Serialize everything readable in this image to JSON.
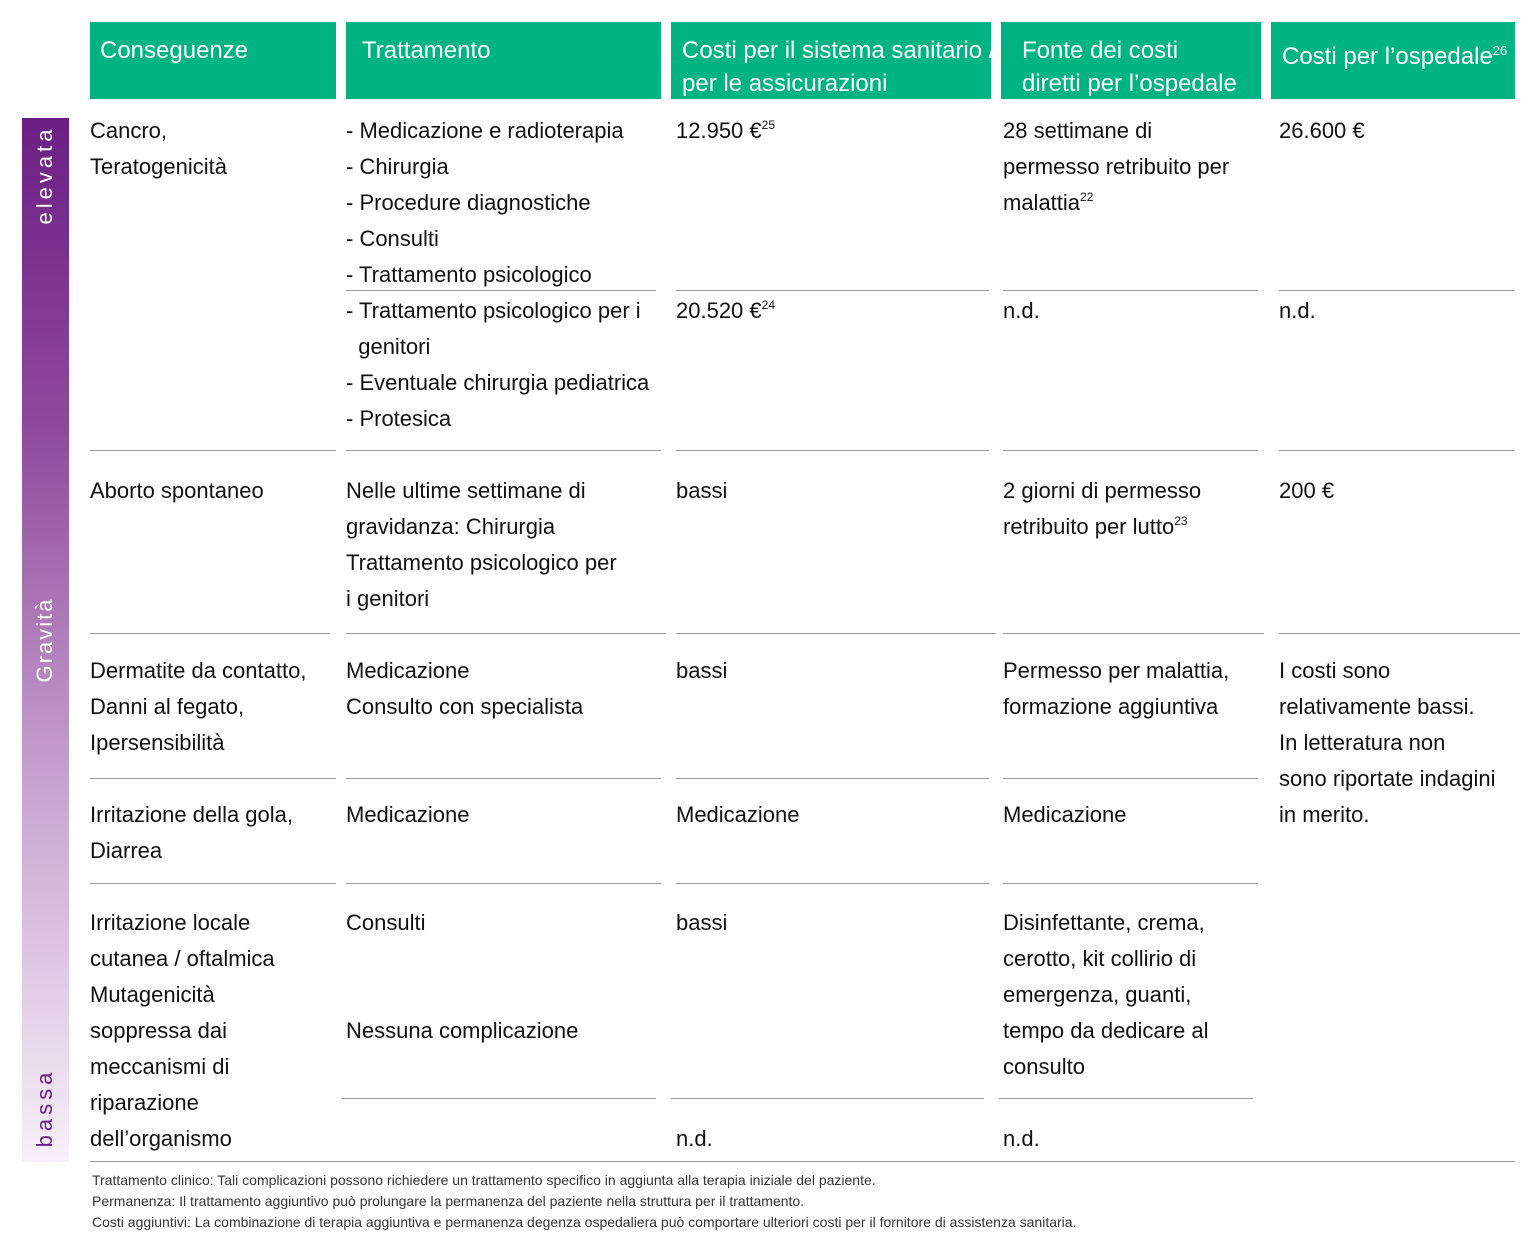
{
  "headers": [
    {
      "lines": [
        "Conseguenze"
      ]
    },
    {
      "lines": [
        "Trattamento"
      ]
    },
    {
      "lines": [
        "Costi per il sistema sanitario /",
        "per le assicurazioni"
      ]
    },
    {
      "lines": [
        "Fonte dei costi",
        "diretti per l’ospedale"
      ]
    },
    {
      "lines": [
        "Costi per l’ospedale"
      ],
      "sup": "26"
    }
  ],
  "severity": {
    "high": "elevata",
    "label": "Gravità",
    "low": "bassa",
    "color_high": "#6b1f84",
    "color_low": "#f7f0f8"
  },
  "cells": [
    {
      "id": "cancro-conseguenze",
      "lines": [
        "Cancro,",
        "Teratogenicità"
      ]
    },
    {
      "id": "cancro-trattamento",
      "lines": [
        "- Medicazione e radioterapia",
        "- Chirurgia",
        "- Procedure diagnostiche",
        "- Consulti",
        "- Trattamento psicologico"
      ]
    },
    {
      "id": "cancro-costi-sistema",
      "lines": [
        {
          "t": "12.950 €",
          "sup": "25"
        }
      ]
    },
    {
      "id": "cancro-fonte",
      "lines": [
        "28 settimane di",
        "permesso retribuito per",
        {
          "t": "malattia",
          "sup": "22"
        }
      ]
    },
    {
      "id": "cancro-costi-ospedale",
      "lines": [
        "26.600 €"
      ]
    },
    {
      "id": "terato-trattamento",
      "lines": [
        "- Trattamento psicologico per i",
        "  genitori",
        "- Eventuale chirurgia pediatrica",
        "- Protesica"
      ]
    },
    {
      "id": "terato-costi-sistema",
      "lines": [
        {
          "t": "20.520 €",
          "sup": "24"
        }
      ]
    },
    {
      "id": "terato-fonte",
      "lines": [
        "n.d."
      ]
    },
    {
      "id": "terato-costi-ospedale",
      "lines": [
        "n.d."
      ]
    },
    {
      "id": "aborto-conseguenze",
      "lines": [
        "Aborto spontaneo"
      ]
    },
    {
      "id": "aborto-trattamento",
      "lines": [
        "Nelle ultime settimane di",
        "gravidanza: Chirurgia",
        "Trattamento psicologico per",
        "i genitori"
      ]
    },
    {
      "id": "aborto-costi-sistema",
      "lines": [
        "bassi"
      ]
    },
    {
      "id": "aborto-fonte",
      "lines": [
        "2 giorni di permesso",
        {
          "t": "retribuito per lutto",
          "sup": "23"
        }
      ]
    },
    {
      "id": "aborto-costi-ospedale",
      "lines": [
        "200 €"
      ]
    },
    {
      "id": "dermatite-conseguenze",
      "lines": [
        "Dermatite da contatto,",
        "Danni al fegato,",
        "Ipersensibilità"
      ]
    },
    {
      "id": "dermatite-trattamento",
      "lines": [
        "Medicazione",
        "Consulto con specialista"
      ]
    },
    {
      "id": "dermatite-costi-sistema",
      "lines": [
        "bassi"
      ]
    },
    {
      "id": "dermatite-fonte",
      "lines": [
        "Permesso per malattia,",
        "formazione aggiuntiva"
      ]
    },
    {
      "id": "bassi-costi-ospedale",
      "lines": [
        "I costi sono",
        "relativamente bassi.",
        "In letteratura non",
        "sono riportate indagini",
        "in merito."
      ]
    },
    {
      "id": "gola-conseguenze",
      "lines": [
        "Irritazione della gola,",
        "Diarrea"
      ]
    },
    {
      "id": "gola-trattamento",
      "lines": [
        "Medicazione"
      ]
    },
    {
      "id": "gola-costi-sistema",
      "lines": [
        "Medicazione"
      ]
    },
    {
      "id": "gola-fonte",
      "lines": [
        "Medicazione"
      ]
    },
    {
      "id": "irritazione-conseguenze",
      "lines": [
        "Irritazione locale",
        "cutanea / oftalmica",
        "Mutagenicità",
        "soppressa dai",
        "meccanismi di",
        "riparazione",
        "dell’organismo"
      ]
    },
    {
      "id": "irritazione-trattamento",
      "lines": [
        "Consulti"
      ]
    },
    {
      "id": "mutagen-trattamento",
      "lines": [
        "Nessuna complicazione"
      ]
    },
    {
      "id": "irritazione-costi-sistema",
      "lines": [
        "bassi"
      ]
    },
    {
      "id": "irritazione-fonte",
      "lines": [
        "Disinfettante, crema,",
        "cerotto, kit collirio di",
        "emergenza, guanti,",
        "tempo da dedicare al",
        "consulto"
      ]
    },
    {
      "id": "mutagen-costi-sistema",
      "lines": [
        "n.d."
      ]
    },
    {
      "id": "mutagen-fonte",
      "lines": [
        "n.d."
      ]
    }
  ],
  "footnotes": [
    "Trattamento clinico: Tali complicazioni possono richiedere un trattamento specifico in aggiunta alla terapia iniziale del paziente.",
    "Permanenza: Il trattamento aggiuntivo può prolungare la permanenza del paziente nella struttura per il trattamento.",
    "Costi aggiuntivi: La combinazione di terapia aggiuntiva e permanenza degenza ospedaliera può comportare ulteriori costi per il fornitore di assistenza sanitaria."
  ],
  "colors": {
    "header": "#00b383",
    "rule": "#999999"
  }
}
